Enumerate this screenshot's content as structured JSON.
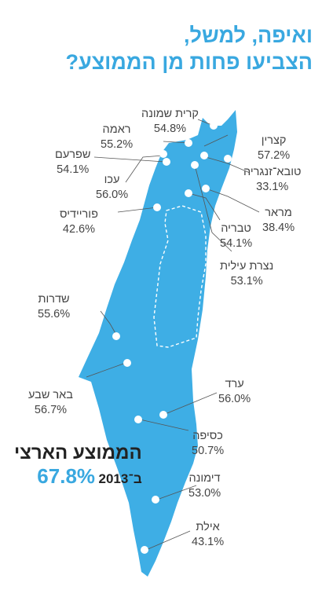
{
  "title": {
    "line1": "ואיפה, למשל,",
    "line2": "הצביעו פחות מן הממוצע?"
  },
  "national_average": {
    "label": "הממוצע הארצי",
    "year_label": "ב־2013",
    "value": "67.8%"
  },
  "colors": {
    "map_fill": "#3eaee5",
    "title": "#39a8e0",
    "text": "#444444",
    "dot": "#ffffff"
  },
  "places": [
    {
      "name": "קרית שמונה",
      "value": "54.8%"
    },
    {
      "name": "ראמה",
      "value": "55.2%"
    },
    {
      "name": "שפרעם",
      "value": "54.1%"
    },
    {
      "name": "עכו",
      "value": "56.0%"
    },
    {
      "name": "פוריידיס",
      "value": "42.6%"
    },
    {
      "name": "קצרין",
      "value": "57.2%"
    },
    {
      "name": "טובא־זנגריה",
      "value": "33.1%"
    },
    {
      "name": "מראר",
      "value": "38.4%"
    },
    {
      "name": "טבריה",
      "value": "54.1%"
    },
    {
      "name": "נצרת עילית",
      "value": "53.1%"
    },
    {
      "name": "שדרות",
      "value": "55.6%"
    },
    {
      "name": "באר שבע",
      "value": "56.7%"
    },
    {
      "name": "ערד",
      "value": "56.0%"
    },
    {
      "name": "כסיפה",
      "value": "50.7%"
    },
    {
      "name": "דימונה",
      "value": "53.0%"
    },
    {
      "name": "אילת",
      "value": "43.1%"
    }
  ]
}
